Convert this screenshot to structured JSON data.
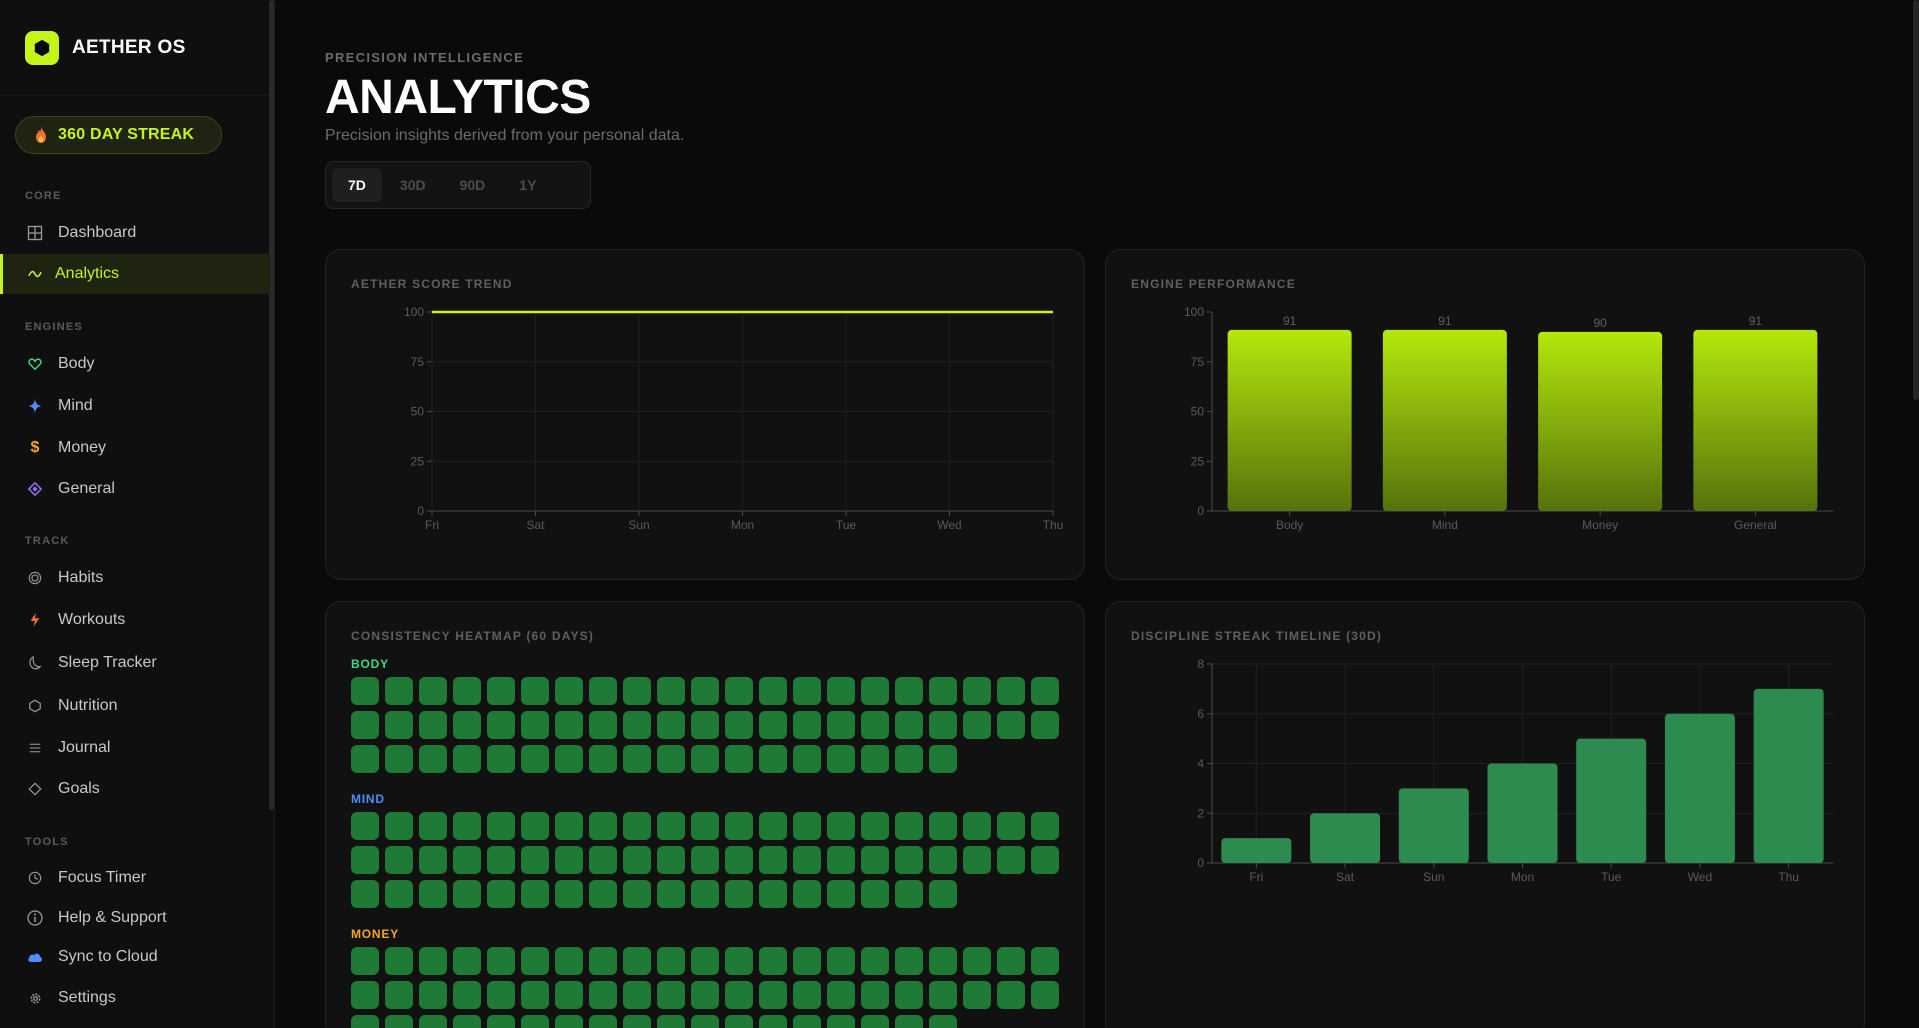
{
  "brand": {
    "name": "AETHER OS",
    "accent": "#c6f31c"
  },
  "streak": {
    "label": "360 DAY STREAK"
  },
  "nav": {
    "sections": [
      {
        "title": "CORE",
        "items": [
          {
            "label": "Dashboard",
            "icon": "grid-icon"
          },
          {
            "label": "Analytics",
            "icon": "trend-icon",
            "active": true
          }
        ]
      },
      {
        "title": "ENGINES",
        "items": [
          {
            "label": "Body",
            "icon": "heart-icon",
            "color": "#3ddc84"
          },
          {
            "label": "Mind",
            "icon": "sparkle-icon",
            "color": "#4d8dff"
          },
          {
            "label": "Money",
            "icon": "dollar-icon",
            "color": "#f5a623"
          },
          {
            "label": "General",
            "icon": "diamond-icon",
            "color": "#9b6bff"
          }
        ]
      },
      {
        "title": "TRACK",
        "items": [
          {
            "label": "Habits",
            "icon": "target-icon"
          },
          {
            "label": "Workouts",
            "icon": "bolt-icon",
            "color": "#ff6b3d"
          },
          {
            "label": "Sleep Tracker",
            "icon": "moon-icon"
          },
          {
            "label": "Nutrition",
            "icon": "hexagon-icon"
          },
          {
            "label": "Journal",
            "icon": "lines-icon"
          },
          {
            "label": "Goals",
            "icon": "diamond-outline-icon"
          }
        ]
      },
      {
        "title": "TOOLS",
        "items": [
          {
            "label": "Focus Timer",
            "icon": "clock-icon"
          },
          {
            "label": "Help & Support",
            "icon": "info-icon"
          },
          {
            "label": "Sync to Cloud",
            "icon": "cloud-icon",
            "color": "#4d8dff"
          },
          {
            "label": "Settings",
            "icon": "gear-icon"
          }
        ]
      }
    ]
  },
  "header": {
    "eyebrow": "PRECISION INTELLIGENCE",
    "title": "ANALYTICS",
    "subtitle": "Precision insights derived from your personal data."
  },
  "range": {
    "options": [
      "7D",
      "30D",
      "90D",
      "1Y"
    ],
    "selected": "7D"
  },
  "score_card": {
    "title": "AETHER SCORE TREND"
  },
  "engine_card": {
    "title": "ENGINE PERFORMANCE"
  },
  "heatmap_card": {
    "title": "CONSISTENCY HEATMAP (60 DAYS)",
    "groups": [
      {
        "label": "BODY",
        "color": "#3ddc84",
        "days": 60
      },
      {
        "label": "MIND",
        "color": "#4d8dff",
        "days": 60
      },
      {
        "label": "MONEY",
        "color": "#f5a623",
        "days": 60
      }
    ]
  },
  "streak_card": {
    "title": "DISCIPLINE STREAK TIMELINE (30D)"
  },
  "chart_data": [
    {
      "type": "line",
      "title": "AETHER SCORE TREND",
      "x": [
        "Fri",
        "Sat",
        "Sun",
        "Mon",
        "Tue",
        "Wed",
        "Thu"
      ],
      "series": [
        {
          "values": [
            100,
            100,
            100,
            100,
            100,
            100,
            100
          ]
        }
      ],
      "ylim": [
        0,
        100
      ],
      "yticks": [
        0,
        25,
        50,
        75,
        100
      ],
      "grid": true,
      "color": "#c6f31c"
    },
    {
      "type": "bar",
      "title": "ENGINE PERFORMANCE",
      "categories": [
        "Body",
        "Mind",
        "Money",
        "General"
      ],
      "values": [
        91,
        91,
        90,
        91
      ],
      "ylim": [
        0,
        100
      ],
      "yticks": [
        0,
        25,
        50,
        75,
        100
      ],
      "data_labels": true,
      "color": "#c6f31c"
    },
    {
      "type": "bar",
      "title": "DISCIPLINE STREAK TIMELINE (30D)",
      "categories": [
        "Fri",
        "Sat",
        "Sun",
        "Mon",
        "Tue",
        "Wed",
        "Thu"
      ],
      "values": [
        1,
        2,
        3,
        4,
        5,
        6,
        7
      ],
      "ylim": [
        0,
        8
      ],
      "yticks": [
        0,
        2,
        4,
        6,
        8
      ],
      "grid": true,
      "color": "#2e8b50"
    }
  ]
}
